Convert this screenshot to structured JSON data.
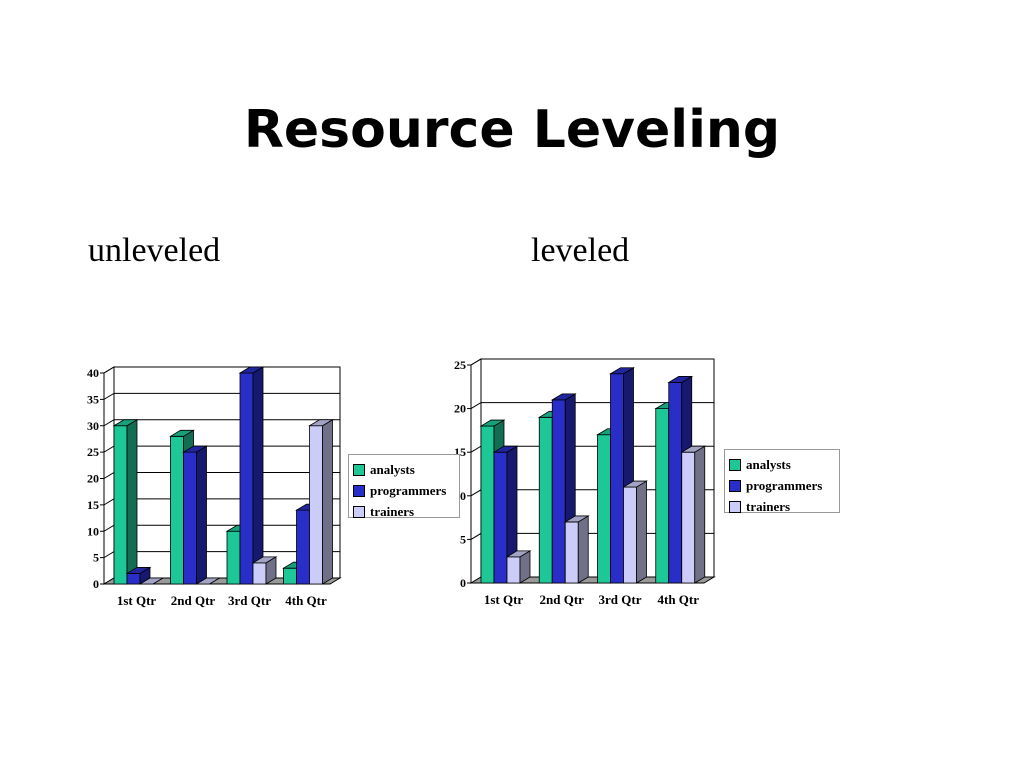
{
  "slide": {
    "title": "Resource Leveling",
    "left_subtitle": "unleveled",
    "right_subtitle": "leveled"
  },
  "colors": {
    "analysts": "#1ec896",
    "programmers": "#2a2ec8",
    "trainers": "#ccccf8"
  },
  "chart_data": [
    {
      "type": "bar",
      "title": "",
      "categories": [
        "1st Qtr",
        "2nd Qtr",
        "3rd Qtr",
        "4th Qtr"
      ],
      "series": [
        {
          "name": "analysts",
          "values": [
            30,
            28,
            10,
            3
          ]
        },
        {
          "name": "programmers",
          "values": [
            2,
            25,
            40,
            14
          ]
        },
        {
          "name": "trainers",
          "values": [
            0,
            0,
            4,
            30
          ]
        }
      ],
      "ylim": [
        0,
        40
      ],
      "yticks": [
        0,
        5,
        10,
        15,
        20,
        25,
        30,
        35,
        40
      ],
      "grid": true,
      "legend": "right"
    },
    {
      "type": "bar",
      "title": "",
      "categories": [
        "1st Qtr",
        "2nd Qtr",
        "3rd Qtr",
        "4th Qtr"
      ],
      "series": [
        {
          "name": "analysts",
          "values": [
            18,
            19,
            17,
            20
          ]
        },
        {
          "name": "programmers",
          "values": [
            15,
            21,
            24,
            23
          ]
        },
        {
          "name": "trainers",
          "values": [
            3,
            7,
            11,
            15
          ]
        }
      ],
      "ylim": [
        0,
        25
      ],
      "yticks": [
        0,
        5,
        10,
        15,
        20,
        25
      ],
      "grid": true,
      "legend": "right"
    }
  ]
}
